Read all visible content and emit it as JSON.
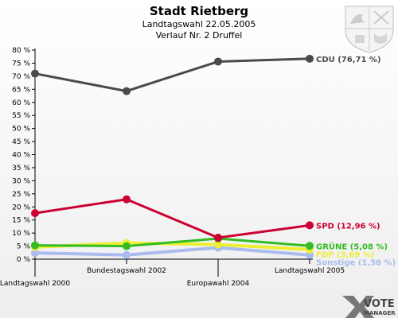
{
  "header": {
    "title": "Stadt Rietberg",
    "subtitle": "Landtagswahl 22.05.2005",
    "subtitle2": "Verlauf Nr. 2 Druffel"
  },
  "logo": {
    "line1": "VOTE",
    "line2": "MANAGER"
  },
  "chart_data": {
    "type": "line",
    "title": "Stadt Rietberg",
    "x": [
      "Landtagswahl 2000",
      "Bundestagswahl 2002",
      "Europawahl 2004",
      "Landtagswahl 2005"
    ],
    "ylim": [
      0,
      80
    ],
    "yticks": [
      0,
      5,
      10,
      15,
      20,
      25,
      30,
      35,
      40,
      45,
      50,
      55,
      60,
      65,
      70,
      75,
      80
    ],
    "ytick_suffix": " %",
    "grid": false,
    "series": [
      {
        "name": "CDU",
        "end_label": "CDU (76,71 %)",
        "color": "#4a4a4a",
        "values": [
          71.0,
          64.3,
          75.6,
          76.71
        ]
      },
      {
        "name": "SPD",
        "end_label": "SPD (12,96 %)",
        "color": "#cc0033",
        "values": [
          17.6,
          22.9,
          8.2,
          12.96
        ]
      },
      {
        "name": "FDP",
        "end_label": "FDP (3,69 %)",
        "color": "#eeee33",
        "values": [
          4.6,
          6.2,
          5.6,
          3.69
        ]
      },
      {
        "name": "GRÜNE",
        "end_label": "GRÜNE (5,08 %)",
        "color": "#33bb22",
        "values": [
          5.3,
          5.0,
          7.9,
          5.08
        ]
      },
      {
        "name": "Sonstige",
        "end_label": "Sonstige (1,58 %)",
        "color": "#aabbee",
        "values": [
          2.4,
          1.6,
          4.4,
          1.58
        ]
      }
    ]
  }
}
